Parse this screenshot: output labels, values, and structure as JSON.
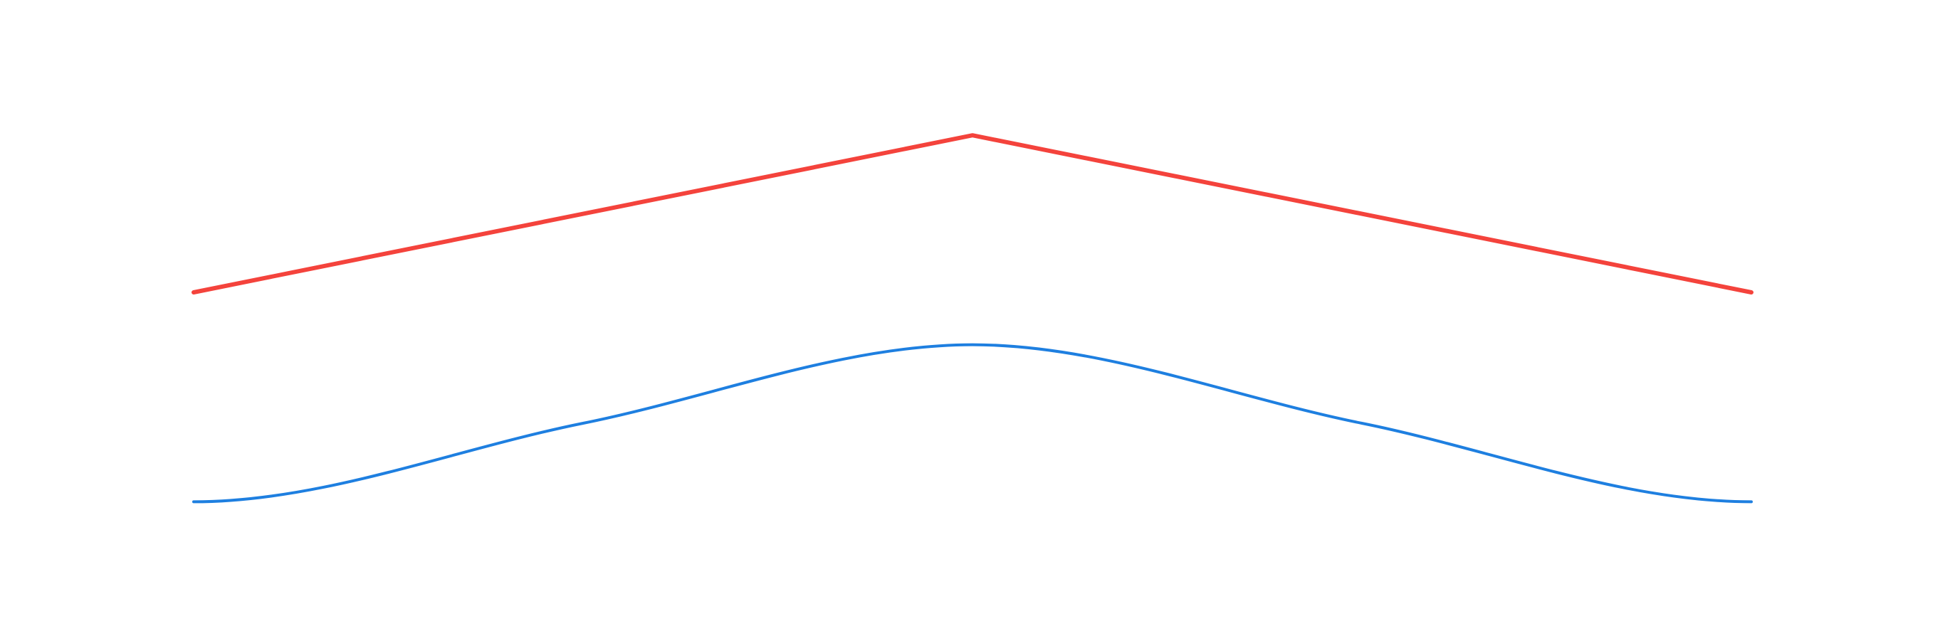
{
  "chart_data": {
    "type": "line",
    "title": "",
    "xlabel": "",
    "ylabel": "",
    "grid": false,
    "legend": "none",
    "axes_visible": false,
    "xlim": [
      0,
      4
    ],
    "ylim": [
      0,
      10
    ],
    "series": [
      {
        "key": "upper",
        "color": "#f4433c",
        "interpolation": "linear",
        "x": [
          0,
          2,
          4
        ],
        "y": [
          5,
          8,
          5
        ]
      },
      {
        "key": "lower",
        "color": "#1e7fe0",
        "interpolation": "smooth",
        "x": [
          0,
          1,
          2,
          3,
          4
        ],
        "y": [
          1,
          2.5,
          4,
          2.5,
          1
        ]
      }
    ]
  }
}
